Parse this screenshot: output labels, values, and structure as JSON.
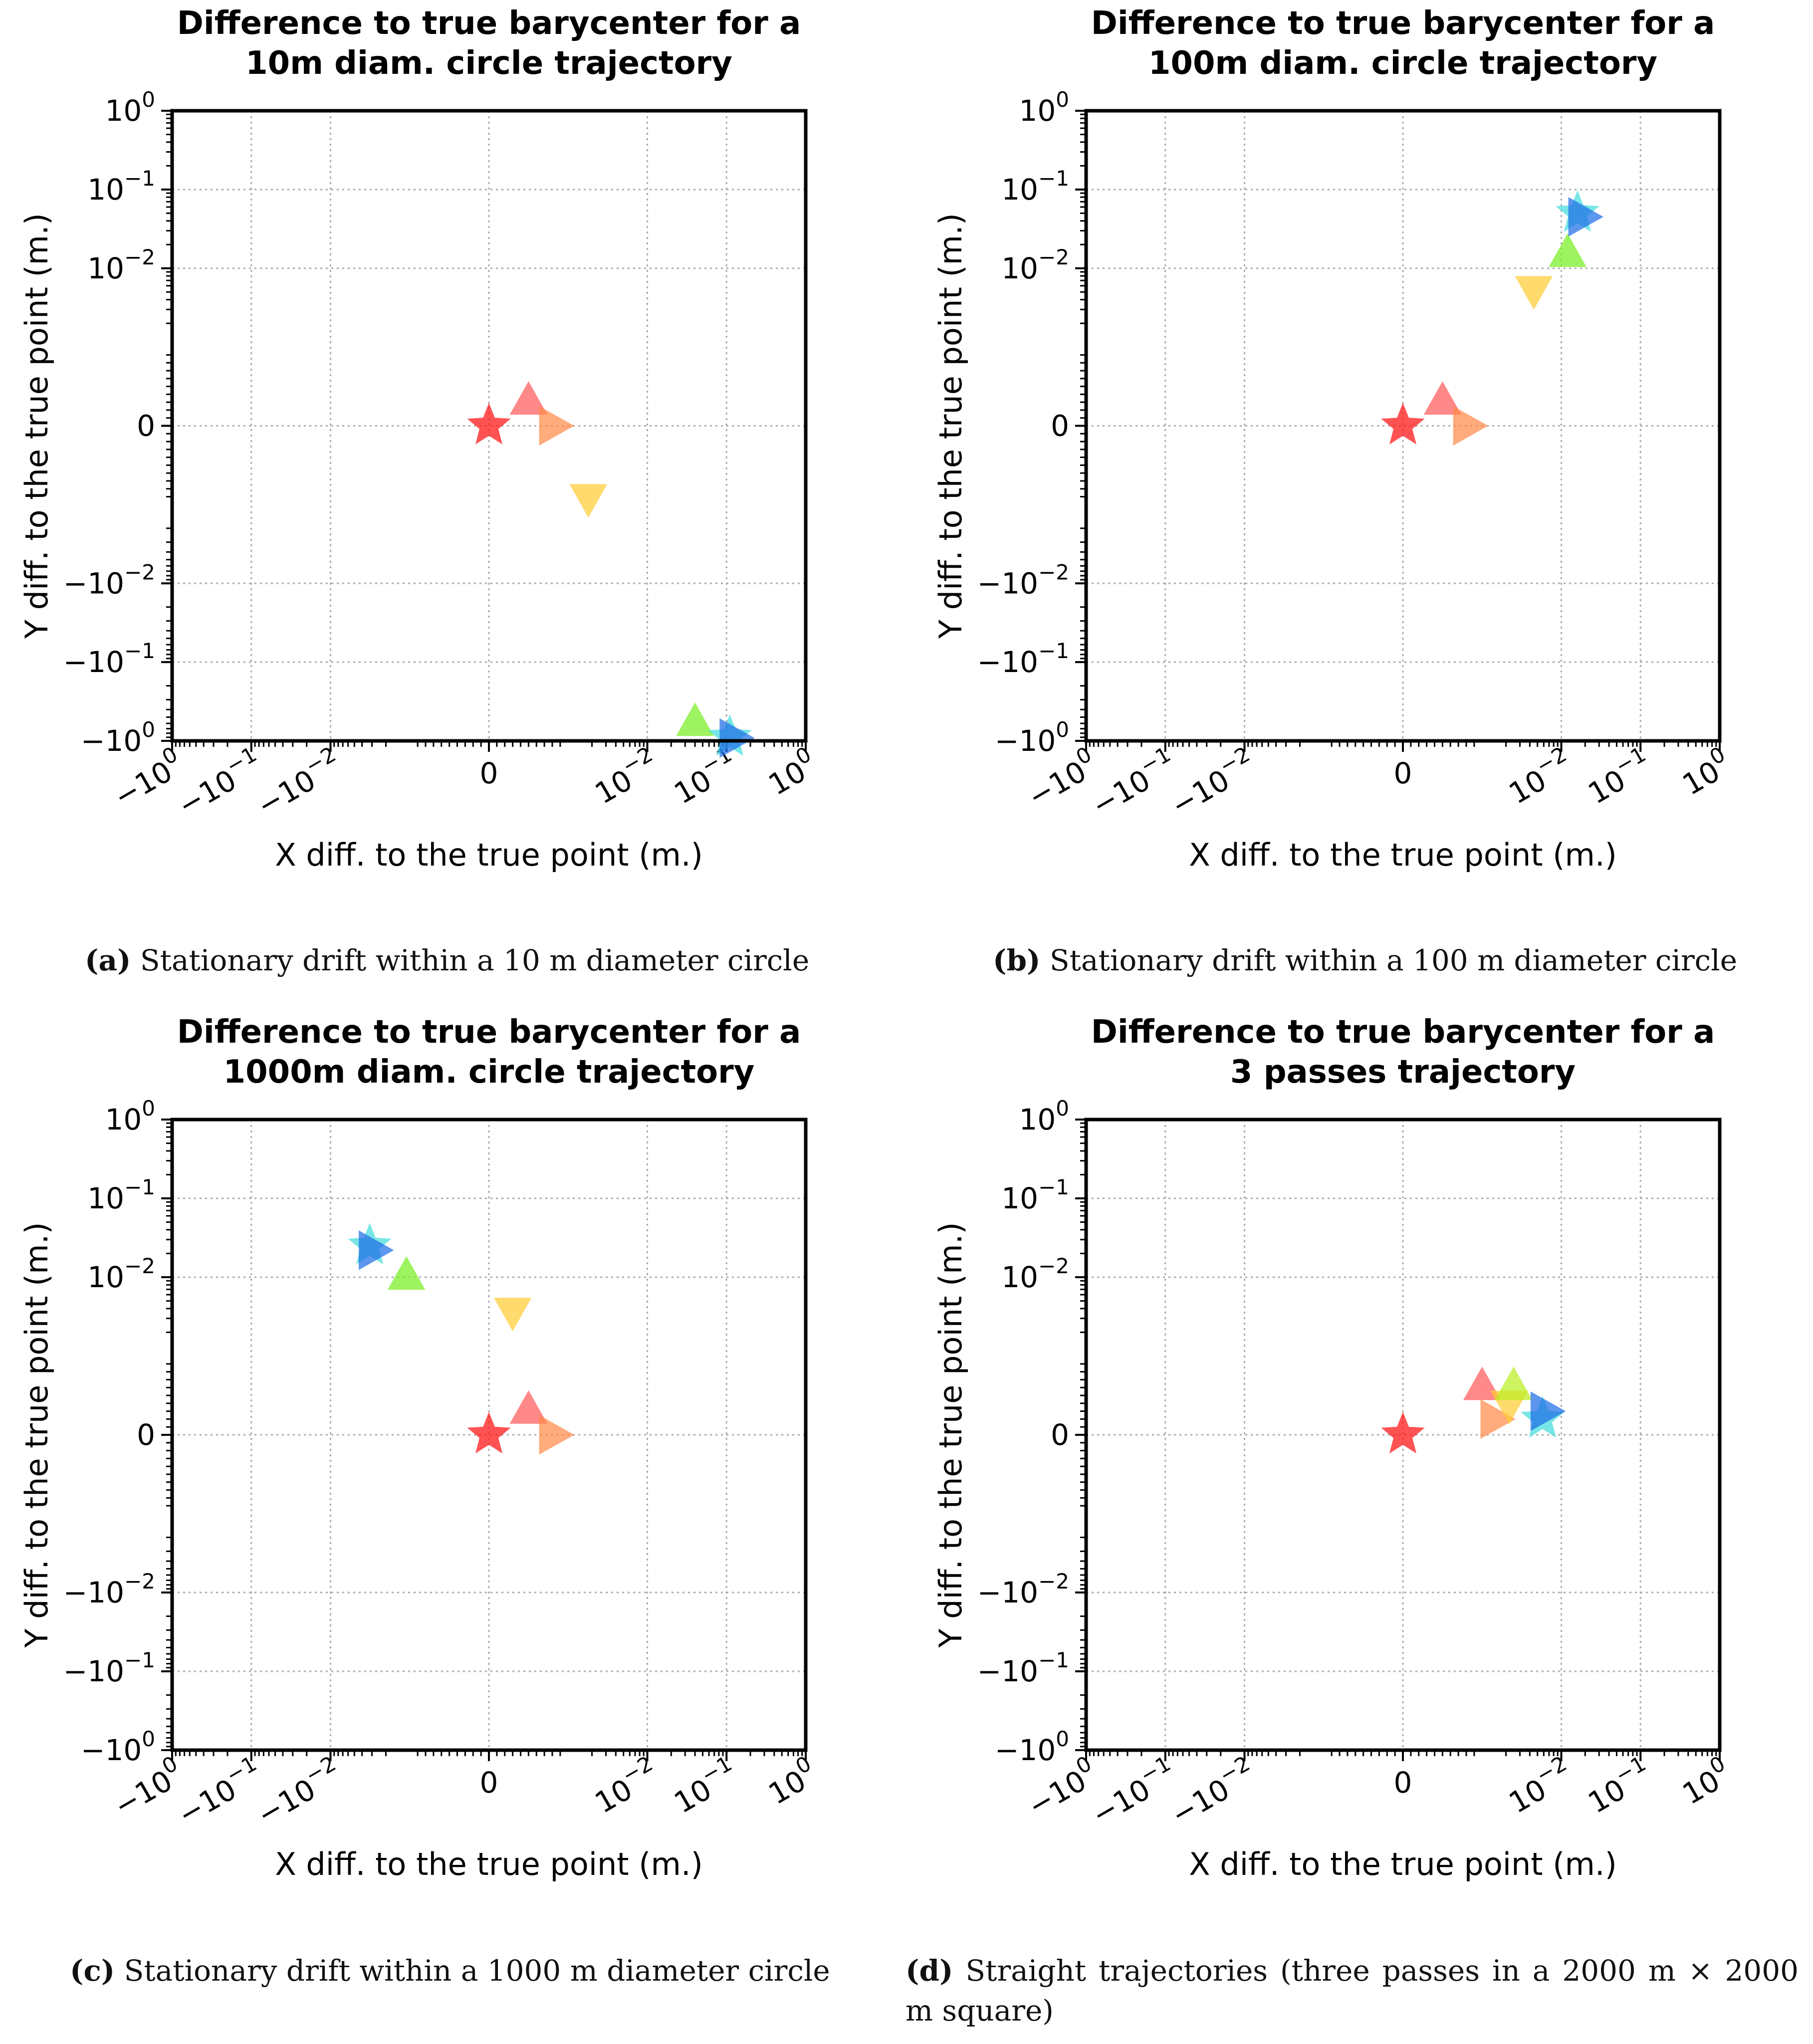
{
  "chart_data": [
    {
      "type": "scatter",
      "title": "Difference to true barycenter for a 10m diam. circle trajectory",
      "title_lines": [
        "Difference to true barycenter for a",
        "10m diam. circle trajectory"
      ],
      "xlabel": "X diff. to the true point (m.)",
      "ylabel": "Y diff. to the true point (m.)",
      "xscale": "symlog",
      "yscale": "symlog",
      "grid": true,
      "xticks": [
        -1,
        -0.1,
        -0.01,
        0,
        0.01,
        0.1,
        1
      ],
      "yticks": [
        -1,
        -0.1,
        -0.01,
        0,
        0.01,
        0.1,
        1
      ],
      "xticklabels": [
        [
          "−10",
          "0"
        ],
        [
          "−10",
          "−1"
        ],
        [
          "−10",
          "−2"
        ],
        [
          "0",
          ""
        ],
        [
          "10",
          "−2"
        ],
        [
          "10",
          "−1"
        ],
        [
          "10",
          "0"
        ]
      ],
      "yticklabels": [
        [
          "−10",
          "0"
        ],
        [
          "−10",
          "−1"
        ],
        [
          "−10",
          "−2"
        ],
        [
          "0",
          ""
        ],
        [
          "10",
          "−2"
        ],
        [
          "10",
          "−1"
        ],
        [
          "10",
          "0"
        ]
      ],
      "points": [
        {
          "marker": "star",
          "color": "#ff1111",
          "x": 0,
          "y": 0
        },
        {
          "marker": "triangle-up",
          "color": "#ff5a5a",
          "x": 0.0005,
          "y": 0.0003
        },
        {
          "marker": "triangle-right",
          "color": "#ff8a4a",
          "x": 0.0008,
          "y": 0
        },
        {
          "marker": "triangle-down",
          "color": "#ffcc33",
          "x": 0.0018,
          "y": -0.0009
        },
        {
          "marker": "triangle-up",
          "color": "#77ee22",
          "x": 0.04,
          "y": -0.6
        },
        {
          "marker": "star",
          "color": "#44dddd",
          "x": 0.11,
          "y": -0.9
        },
        {
          "marker": "triangle-right",
          "color": "#1f6fe6",
          "x": 0.12,
          "y": -0.92
        }
      ]
    },
    {
      "type": "scatter",
      "title": "Difference to true barycenter for a 100m diam. circle trajectory",
      "title_lines": [
        "Difference to true barycenter for a",
        "100m diam. circle trajectory"
      ],
      "xlabel": "X diff. to the true point (m.)",
      "ylabel": "Y diff. to the true point (m.)",
      "xscale": "symlog",
      "yscale": "symlog",
      "grid": true,
      "xticks": [
        -1,
        -0.1,
        -0.01,
        0,
        0.01,
        0.1,
        1
      ],
      "yticks": [
        -1,
        -0.1,
        -0.01,
        0,
        0.01,
        0.1,
        1
      ],
      "xticklabels": [
        [
          "−10",
          "0"
        ],
        [
          "−10",
          "−1"
        ],
        [
          "−10",
          "−2"
        ],
        [
          "0",
          ""
        ],
        [
          "10",
          "−2"
        ],
        [
          "10",
          "−1"
        ],
        [
          "10",
          "0"
        ]
      ],
      "yticklabels": [
        [
          "−10",
          "0"
        ],
        [
          "−10",
          "−1"
        ],
        [
          "−10",
          "−2"
        ],
        [
          "0",
          ""
        ],
        [
          "10",
          "−2"
        ],
        [
          "10",
          "−1"
        ],
        [
          "10",
          "0"
        ]
      ],
      "points": [
        {
          "marker": "star",
          "color": "#ff1111",
          "x": 0,
          "y": 0
        },
        {
          "marker": "triangle-up",
          "color": "#ff5a5a",
          "x": 0.0005,
          "y": 0.0003
        },
        {
          "marker": "triangle-right",
          "color": "#ff8a4a",
          "x": 0.0008,
          "y": 0
        },
        {
          "marker": "triangle-down",
          "color": "#ffcc33",
          "x": 0.0045,
          "y": 0.0055
        },
        {
          "marker": "triangle-up",
          "color": "#77ee22",
          "x": 0.012,
          "y": 0.015
        },
        {
          "marker": "star",
          "color": "#44dddd",
          "x": 0.016,
          "y": 0.05
        },
        {
          "marker": "triangle-right",
          "color": "#1f6fe6",
          "x": 0.018,
          "y": 0.045
        }
      ]
    },
    {
      "type": "scatter",
      "title": "Difference to true barycenter for a 1000m diam. circle trajectory",
      "title_lines": [
        "Difference to true barycenter for a",
        "1000m diam. circle trajectory"
      ],
      "xlabel": "X diff. to the true point (m.)",
      "ylabel": "Y diff. to the true point (m.)",
      "xscale": "symlog",
      "yscale": "symlog",
      "grid": true,
      "xticks": [
        -1,
        -0.1,
        -0.01,
        0,
        0.01,
        0.1,
        1
      ],
      "yticks": [
        -1,
        -0.1,
        -0.01,
        0,
        0.01,
        0.1,
        1
      ],
      "xticklabels": [
        [
          "−10",
          "0"
        ],
        [
          "−10",
          "−1"
        ],
        [
          "−10",
          "−2"
        ],
        [
          "0",
          ""
        ],
        [
          "10",
          "−2"
        ],
        [
          "10",
          "−1"
        ],
        [
          "10",
          "0"
        ]
      ],
      "yticklabels": [
        [
          "−10",
          "0"
        ],
        [
          "−10",
          "−1"
        ],
        [
          "−10",
          "−2"
        ],
        [
          "0",
          ""
        ],
        [
          "10",
          "−2"
        ],
        [
          "10",
          "−1"
        ],
        [
          "10",
          "0"
        ]
      ],
      "points": [
        {
          "marker": "star",
          "color": "#ff1111",
          "x": 0,
          "y": 0
        },
        {
          "marker": "triangle-up",
          "color": "#ff5a5a",
          "x": 0.0005,
          "y": 0.0003
        },
        {
          "marker": "triangle-right",
          "color": "#ff8a4a",
          "x": 0.0008,
          "y": 0
        },
        {
          "marker": "triangle-down",
          "color": "#ffcc33",
          "x": 0.0003,
          "y": 0.0038
        },
        {
          "marker": "triangle-up",
          "color": "#77ee22",
          "x": -0.0011,
          "y": 0.01
        },
        {
          "marker": "star",
          "color": "#44dddd",
          "x": -0.0032,
          "y": 0.025
        },
        {
          "marker": "triangle-right",
          "color": "#1f6fe6",
          "x": -0.003,
          "y": 0.022
        }
      ]
    },
    {
      "type": "scatter",
      "title": "Difference to true barycenter for a 3 passes trajectory",
      "title_lines": [
        "Difference to true barycenter for a",
        "3 passes trajectory"
      ],
      "xlabel": "X diff. to the true point (m.)",
      "ylabel": "Y diff. to the true point (m.)",
      "xscale": "symlog",
      "yscale": "symlog",
      "grid": true,
      "xticks": [
        -1,
        -0.1,
        -0.01,
        0,
        0.01,
        0.1,
        1
      ],
      "yticks": [
        -1,
        -0.1,
        -0.01,
        0,
        0.01,
        0.1,
        1
      ],
      "xticklabels": [
        [
          "−10",
          "0"
        ],
        [
          "−10",
          "−1"
        ],
        [
          "−10",
          "−2"
        ],
        [
          "0",
          ""
        ],
        [
          "10",
          "−2"
        ],
        [
          "10",
          "−1"
        ],
        [
          "10",
          "0"
        ]
      ],
      "yticklabels": [
        [
          "−10",
          "0"
        ],
        [
          "−10",
          "−1"
        ],
        [
          "−10",
          "−2"
        ],
        [
          "0",
          ""
        ],
        [
          "10",
          "−2"
        ],
        [
          "10",
          "−1"
        ],
        [
          "10",
          "0"
        ]
      ],
      "points": [
        {
          "marker": "star",
          "color": "#ff1111",
          "x": 0,
          "y": 0
        },
        {
          "marker": "triangle-up",
          "color": "#ff5a5a",
          "x": 0.001,
          "y": 0.0006
        },
        {
          "marker": "triangle-right",
          "color": "#ff8a4a",
          "x": 0.0014,
          "y": 0.0002
        },
        {
          "marker": "triangle-down",
          "color": "#ffcc33",
          "x": 0.0022,
          "y": 0.0004
        },
        {
          "marker": "triangle-up",
          "color": "#bbee22",
          "x": 0.0025,
          "y": 0.0006
        },
        {
          "marker": "star",
          "color": "#44dddd",
          "x": 0.0058,
          "y": 0.0002
        },
        {
          "marker": "triangle-right",
          "color": "#1f6fe6",
          "x": 0.006,
          "y": 0.0003
        }
      ]
    }
  ],
  "captions": [
    {
      "label": "(a)",
      "text": "Stationary drift within a 10 m diameter circle"
    },
    {
      "label": "(b)",
      "text": "Stationary drift within a 100 m diameter circle"
    },
    {
      "label": "(c)",
      "text": "Stationary drift within a 1000 m diameter circle"
    },
    {
      "label": "(d)",
      "text": "Straight trajectories (three passes in a 2000 m × 2000 m square)"
    }
  ]
}
